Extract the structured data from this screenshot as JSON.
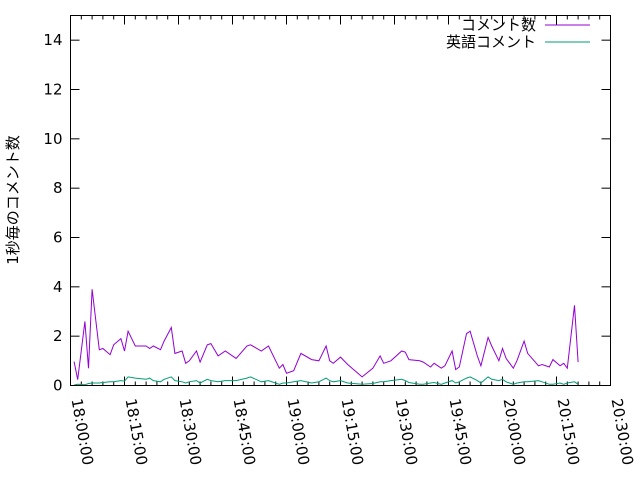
{
  "chart_data": {
    "type": "line",
    "title": "",
    "xlabel": "",
    "ylabel": "1秒毎のコメント数",
    "xlim": [
      "18:00:00",
      "20:30:00"
    ],
    "ylim": [
      0,
      15
    ],
    "xticks": [
      "18:00:00",
      "18:15:00",
      "18:30:00",
      "18:45:00",
      "19:00:00",
      "19:15:00",
      "19:30:00",
      "19:45:00",
      "20:00:00",
      "20:15:00",
      "20:30:00"
    ],
    "yticks": [
      "0",
      "2",
      "4",
      "6",
      "8",
      "10",
      "12",
      "14"
    ],
    "grid": false,
    "legend_position": "top-right",
    "x": [
      "18:01",
      "18:02",
      "18:04",
      "18:05",
      "18:06",
      "18:08",
      "18:09",
      "18:11",
      "18:12",
      "18:14",
      "18:15",
      "18:16",
      "18:18",
      "18:21",
      "18:22",
      "18:23",
      "18:25",
      "18:26",
      "18:28",
      "18:29",
      "18:31",
      "18:32",
      "18:33",
      "18:35",
      "18:36",
      "18:38",
      "18:39",
      "18:41",
      "18:43",
      "18:46",
      "18:49",
      "18:50",
      "18:53",
      "18:55",
      "18:58",
      "18:59",
      "19:00",
      "19:02",
      "19:04",
      "19:07",
      "19:09",
      "19:11",
      "19:12",
      "19:13",
      "19:15",
      "19:17",
      "19:21",
      "19:24",
      "19:26",
      "19:27",
      "19:29",
      "19:32",
      "19:33",
      "19:34",
      "19:37",
      "19:38",
      "19:40",
      "19:41",
      "19:43",
      "19:44",
      "19:46",
      "19:47",
      "19:48",
      "19:50",
      "19:51",
      "19:53",
      "19:54",
      "19:56",
      "19:57",
      "19:59",
      "20:00",
      "20:01",
      "20:03",
      "20:04",
      "20:06",
      "20:07",
      "20:10",
      "20:11",
      "20:13",
      "20:14",
      "20:16",
      "20:17",
      "20:18",
      "20:20",
      "20:21"
    ],
    "series": [
      {
        "name": "コメント数",
        "color": "#9400d3",
        "values": [
          0.97,
          0.24,
          2.6,
          0.7,
          3.9,
          1.45,
          1.5,
          1.25,
          1.65,
          1.9,
          1.4,
          2.2,
          1.6,
          1.6,
          1.5,
          1.6,
          1.45,
          1.8,
          2.35,
          1.3,
          1.4,
          0.9,
          1.0,
          1.4,
          0.95,
          1.65,
          1.7,
          1.2,
          1.4,
          1.1,
          1.6,
          1.65,
          1.4,
          1.6,
          0.7,
          0.85,
          0.5,
          0.6,
          1.3,
          1.05,
          1.0,
          1.6,
          1.0,
          0.9,
          1.15,
          0.85,
          0.35,
          0.7,
          1.2,
          0.9,
          1.0,
          1.4,
          1.35,
          1.05,
          1.0,
          0.95,
          0.75,
          0.9,
          0.7,
          0.8,
          1.4,
          0.65,
          0.75,
          2.1,
          2.2,
          1.2,
          0.8,
          1.95,
          1.6,
          1.0,
          1.5,
          1.1,
          0.7,
          1.0,
          1.8,
          1.3,
          0.8,
          0.85,
          0.75,
          1.05,
          0.8,
          0.9,
          0.7,
          3.25,
          0.95
        ]
      },
      {
        "name": "英語コメント",
        "color": "#009e73",
        "values": [
          0.02,
          0.05,
          0.03,
          0.08,
          0.1,
          0.1,
          0.12,
          0.15,
          0.15,
          0.2,
          0.18,
          0.35,
          0.3,
          0.25,
          0.3,
          0.2,
          0.15,
          0.25,
          0.35,
          0.2,
          0.15,
          0.1,
          0.15,
          0.2,
          0.1,
          0.25,
          0.2,
          0.15,
          0.2,
          0.2,
          0.3,
          0.35,
          0.15,
          0.2,
          0.05,
          0.1,
          0.1,
          0.15,
          0.2,
          0.1,
          0.15,
          0.3,
          0.2,
          0.15,
          0.2,
          0.1,
          0.05,
          0.08,
          0.15,
          0.15,
          0.2,
          0.25,
          0.2,
          0.12,
          0.05,
          0.05,
          0.1,
          0.12,
          0.05,
          0.1,
          0.2,
          0.1,
          0.15,
          0.3,
          0.35,
          0.2,
          0.1,
          0.35,
          0.25,
          0.2,
          0.25,
          0.15,
          0.05,
          0.1,
          0.15,
          0.15,
          0.2,
          0.15,
          0.05,
          0.05,
          0.1,
          0.05,
          0.1,
          0.15,
          0.05
        ]
      }
    ]
  }
}
